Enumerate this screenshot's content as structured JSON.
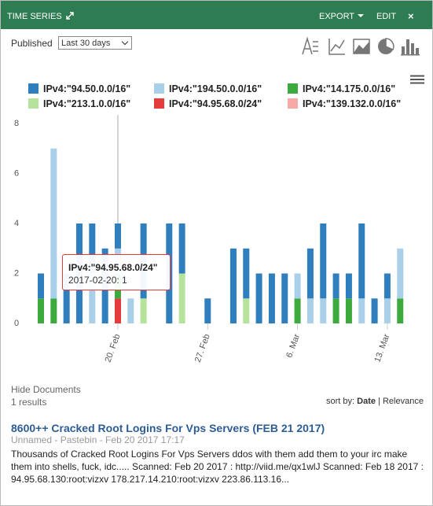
{
  "header": {
    "title": "TIME SERIES",
    "export": "EXPORT",
    "edit": "EDIT",
    "close": "×"
  },
  "controls": {
    "label": "Published",
    "select": "Last 30 days"
  },
  "chart_data": {
    "type": "bar",
    "stacked": true,
    "categories": [
      null,
      null,
      null,
      null,
      null,
      null,
      "20. Feb",
      null,
      null,
      null,
      null,
      null,
      null,
      "27. Feb",
      null,
      null,
      null,
      null,
      null,
      null,
      "6. Mar",
      null,
      null,
      null,
      null,
      null,
      null,
      "13. Mar",
      null
    ],
    "series": [
      {
        "name": "IPv4:\"94.50.0.0/16\"",
        "color": "#2f7ebd",
        "values": [
          1,
          0,
          2,
          4,
          2,
          3,
          1,
          0,
          3,
          0,
          4,
          2,
          0,
          1,
          0,
          3,
          2,
          2,
          2,
          2,
          0,
          2,
          3,
          1,
          1,
          3,
          1,
          1,
          0
        ]
      },
      {
        "name": "IPv4:\"194.50.0.0/16\"",
        "color": "#a9cfe9",
        "values": [
          0,
          6,
          0,
          0,
          2,
          0,
          1,
          1,
          0,
          0,
          0,
          0,
          0,
          0,
          0,
          0,
          0,
          0,
          0,
          0,
          1,
          1,
          1,
          0,
          0,
          1,
          0,
          1,
          2
        ]
      },
      {
        "name": "IPv4:\"14.175.0.0/16\"",
        "color": "#3daa3d",
        "values": [
          1,
          1,
          0,
          0,
          0,
          0,
          1,
          0,
          0,
          0,
          0,
          0,
          0,
          0,
          0,
          0,
          0,
          0,
          0,
          0,
          1,
          0,
          0,
          1,
          1,
          0,
          0,
          0,
          1
        ]
      },
      {
        "name": "IPv4:\"213.1.0.0/16\"",
        "color": "#b6e39b",
        "values": [
          0,
          0,
          0,
          0,
          0,
          0,
          0,
          0,
          1,
          0,
          0,
          2,
          0,
          0,
          0,
          0,
          1,
          0,
          0,
          0,
          0,
          0,
          0,
          0,
          0,
          0,
          0,
          0,
          0
        ]
      },
      {
        "name": "IPv4:\"94.95.68.0/24\"",
        "color": "#e63b3b",
        "values": [
          0,
          0,
          0,
          0,
          0,
          0,
          1,
          0,
          0,
          0,
          0,
          0,
          0,
          0,
          0,
          0,
          0,
          0,
          0,
          0,
          0,
          0,
          0,
          0,
          0,
          0,
          0,
          0,
          0
        ]
      },
      {
        "name": "IPv4:\"139.132.0.0/16\"",
        "color": "#f7a9a8",
        "values": [
          0,
          0,
          0,
          0,
          0,
          0,
          0,
          0,
          0,
          0,
          0,
          0,
          0,
          0,
          0,
          0,
          0,
          0,
          0,
          0,
          0,
          0,
          0,
          0,
          0,
          0,
          0,
          0,
          0
        ]
      }
    ],
    "ylim": [
      0,
      8
    ],
    "yticks": [
      0,
      2,
      4,
      6,
      8
    ],
    "grid": false,
    "tooltip": {
      "title": "IPv4:\"94.95.68.0/24\"",
      "text": "2017-02-20: 1"
    }
  },
  "documents": {
    "toggle": "Hide Documents",
    "count": "1 results",
    "sort_label": "sort by:",
    "sort_options": [
      "Date",
      "Relevance"
    ],
    "separator": "|"
  },
  "results": [
    {
      "title": "8600++ Cracked Root Logins For Vps Servers (FEB 21 2017)",
      "meta": "Unnamed - Pastebin - Feb 20 2017 17:17",
      "text": "Thousands of Cracked Root Logins For Vps Servers ddos with them add them to your irc make them into shells, fuck, idc..... Scanned: Feb 20 2017 : http://viid.me/qx1wlJ Scanned: Feb 18 2017 : 94.95.68.130:root:vizxv 178.217.14.210:root:vizxv 223.86.113.16..."
    }
  ]
}
